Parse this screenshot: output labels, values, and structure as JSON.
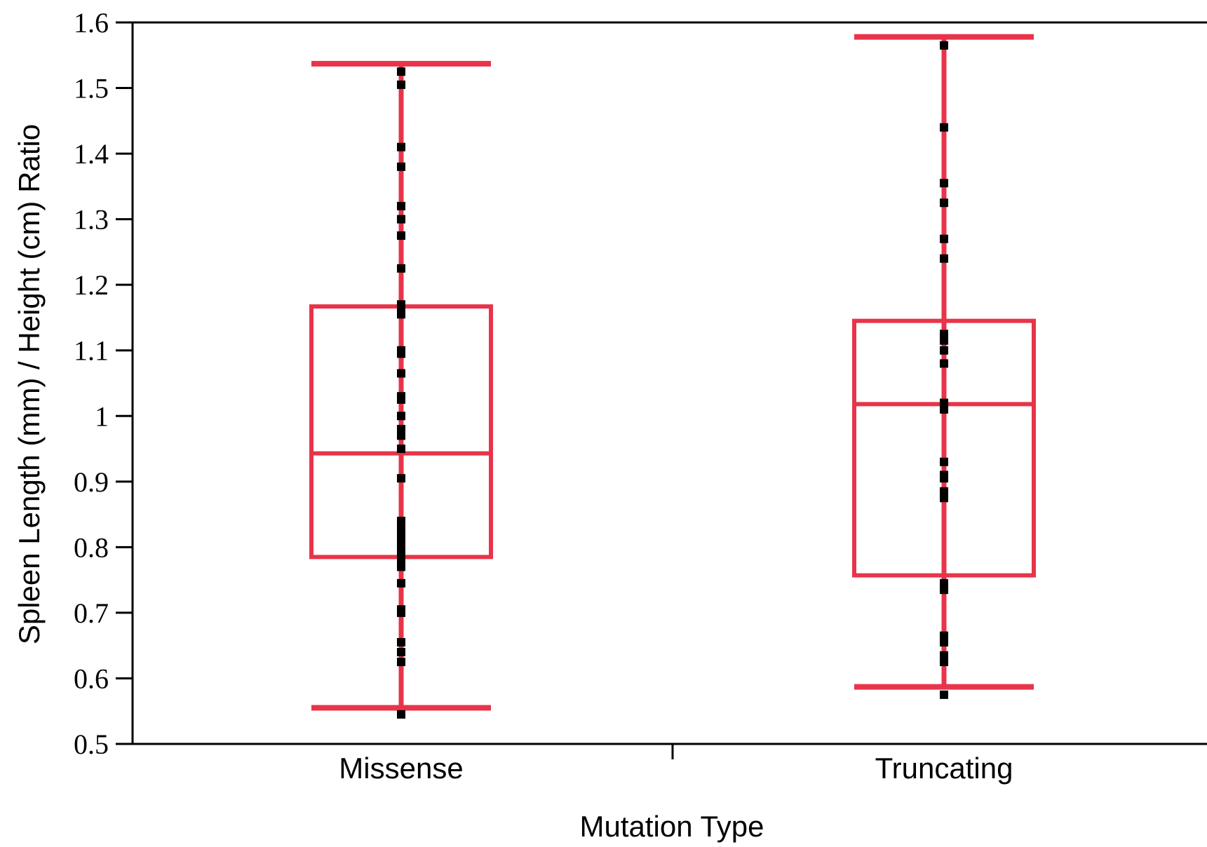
{
  "chart_data": {
    "type": "box",
    "xlabel": "Mutation Type",
    "ylabel": "Spleen Length (mm) / Height (cm) Ratio",
    "ylim": [
      0.5,
      1.6
    ],
    "yticks": [
      "0.5",
      "0.6",
      "0.7",
      "0.8",
      "0.9",
      "1",
      "1.1",
      "1.2",
      "1.3",
      "1.4",
      "1.5",
      "1.6"
    ],
    "categories": [
      "Missense",
      "Truncating"
    ],
    "box_color": "#e8344a",
    "point_color": "#000000",
    "frame": "top-right-left-bottom",
    "boxes": [
      {
        "category": "Missense",
        "whisker_low": 0.555,
        "q1": 0.785,
        "median": 0.943,
        "q3": 1.167,
        "whisker_high": 1.537,
        "points": [
          0.545,
          0.625,
          0.64,
          0.655,
          0.7,
          0.705,
          0.745,
          0.77,
          0.78,
          0.79,
          0.8,
          0.81,
          0.82,
          0.83,
          0.84,
          0.905,
          0.95,
          0.97,
          0.98,
          1.0,
          1.025,
          1.03,
          1.065,
          1.095,
          1.1,
          1.155,
          1.16,
          1.17,
          1.225,
          1.275,
          1.3,
          1.32,
          1.38,
          1.41,
          1.505,
          1.525
        ]
      },
      {
        "category": "Truncating",
        "whisker_low": 0.587,
        "q1": 0.757,
        "median": 1.018,
        "q3": 1.145,
        "whisker_high": 1.578,
        "points": [
          0.575,
          0.625,
          0.635,
          0.655,
          0.665,
          0.735,
          0.745,
          0.875,
          0.885,
          0.905,
          0.91,
          0.93,
          1.01,
          1.02,
          1.08,
          1.1,
          1.115,
          1.125,
          1.24,
          1.27,
          1.325,
          1.355,
          1.44,
          1.565
        ]
      }
    ]
  }
}
